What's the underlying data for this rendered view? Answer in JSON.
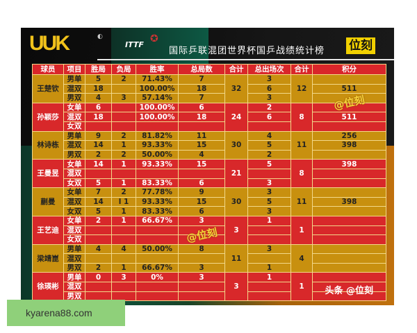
{
  "header": {
    "logo": "UUK",
    "title": "国际乒联混团世界杯国乒战绩统计榜",
    "brand": "位刻"
  },
  "columns": [
    "球员",
    "项目",
    "胜局",
    "负局",
    "胜率",
    "总局数",
    "合计",
    "总出场次",
    "合计",
    "积分"
  ],
  "players": [
    {
      "name": "王楚钦",
      "total_games": "32",
      "total_apps": "12",
      "color": "gold",
      "rows": [
        {
          "event": "男单",
          "won": "5",
          "lost": "2",
          "rate": "71.43%",
          "games": "7",
          "apps": "3",
          "points": ""
        },
        {
          "event": "混双",
          "won": "18",
          "lost": "",
          "rate": "100.00%",
          "games": "18",
          "apps": "6",
          "points": "511"
        },
        {
          "event": "男双",
          "won": "4",
          "lost": "3",
          "rate": "57.14%",
          "games": "7",
          "apps": "3",
          "points": ""
        }
      ]
    },
    {
      "name": "孙颖莎",
      "total_games": "24",
      "total_apps": "8",
      "color": "red",
      "rows": [
        {
          "event": "女单",
          "won": "6",
          "lost": "",
          "rate": "100.00%",
          "games": "6",
          "apps": "2",
          "points": ""
        },
        {
          "event": "混双",
          "won": "18",
          "lost": "",
          "rate": "100.00%",
          "games": "18",
          "apps": "6",
          "points": "511"
        },
        {
          "event": "女双",
          "won": "",
          "lost": "",
          "rate": "",
          "games": "",
          "apps": "",
          "points": ""
        }
      ]
    },
    {
      "name": "林诗栋",
      "total_games": "30",
      "total_apps": "11",
      "color": "gold",
      "rows": [
        {
          "event": "男单",
          "won": "9",
          "lost": "2",
          "rate": "81.82%",
          "games": "11",
          "apps": "4",
          "points": "256"
        },
        {
          "event": "混双",
          "won": "14",
          "lost": "1",
          "rate": "93.33%",
          "games": "15",
          "apps": "5",
          "points": "398"
        },
        {
          "event": "男双",
          "won": "2",
          "lost": "2",
          "rate": "50.00%",
          "games": "4",
          "apps": "2",
          "points": ""
        }
      ]
    },
    {
      "name": "王曼昱",
      "total_games": "21",
      "total_apps": "8",
      "color": "red",
      "rows": [
        {
          "event": "女单",
          "won": "14",
          "lost": "1",
          "rate": "93.33%",
          "games": "15",
          "apps": "5",
          "points": "398"
        },
        {
          "event": "混双",
          "won": "",
          "lost": "",
          "rate": "",
          "games": "",
          "apps": "",
          "points": ""
        },
        {
          "event": "女双",
          "won": "5",
          "lost": "1",
          "rate": "83.33%",
          "games": "6",
          "apps": "3",
          "points": ""
        }
      ]
    },
    {
      "name": "蒯曼",
      "total_games": "30",
      "total_apps": "11",
      "color": "gold",
      "rows": [
        {
          "event": "女单",
          "won": "7",
          "lost": "2",
          "rate": "77.78%",
          "games": "9",
          "apps": "3",
          "points": ""
        },
        {
          "event": "混双",
          "won": "14",
          "lost": "l 1",
          "rate": "93.33%",
          "games": "15",
          "apps": "5",
          "points": "398"
        },
        {
          "event": "女双",
          "won": "5",
          "lost": "1",
          "rate": "83.33%",
          "games": "6",
          "apps": "3",
          "points": ""
        }
      ]
    },
    {
      "name": "王艺迪",
      "total_games": "3",
      "total_apps": "1",
      "color": "red",
      "rows": [
        {
          "event": "女单",
          "won": "2",
          "lost": "1",
          "rate": "66.67%",
          "games": "3",
          "apps": "1",
          "points": ""
        },
        {
          "event": "混双",
          "won": "",
          "lost": "",
          "rate": "",
          "games": "",
          "apps": "",
          "points": ""
        },
        {
          "event": "女双",
          "won": "",
          "lost": "",
          "rate": "",
          "games": "",
          "apps": "",
          "points": ""
        }
      ]
    },
    {
      "name": "梁靖崑",
      "total_games": "11",
      "total_apps": "4",
      "color": "gold",
      "rows": [
        {
          "event": "男单",
          "won": "4",
          "lost": "4",
          "rate": "50.00%",
          "games": "8",
          "apps": "3",
          "points": ""
        },
        {
          "event": "混双",
          "won": "",
          "lost": "",
          "rate": "",
          "games": "",
          "apps": "",
          "points": ""
        },
        {
          "event": "男双",
          "won": "2",
          "lost": "1",
          "rate": "66.67%",
          "games": "3",
          "apps": "1",
          "points": ""
        }
      ]
    },
    {
      "name": "徐瑛彬",
      "total_games": "3",
      "total_apps": "1",
      "color": "red",
      "rows": [
        {
          "event": "男单",
          "won": "0",
          "lost": "3",
          "rate": "0%",
          "games": "3",
          "apps": "1",
          "points": ""
        },
        {
          "event": "混双",
          "won": "",
          "lost": "",
          "rate": "",
          "games": "",
          "apps": "",
          "points": ""
        },
        {
          "event": "男双",
          "won": "",
          "lost": "",
          "rate": "",
          "games": "",
          "apps": "",
          "points": ""
        }
      ]
    }
  ],
  "watermarks": {
    "mark": "@位刻",
    "footer": "头条 @位刻"
  },
  "overlay": {
    "site": "kyarena88.com"
  },
  "colors": {
    "gold": "#c8900f",
    "red": "#d8282a",
    "header": "#d9262a",
    "brand": "#f1d000"
  }
}
